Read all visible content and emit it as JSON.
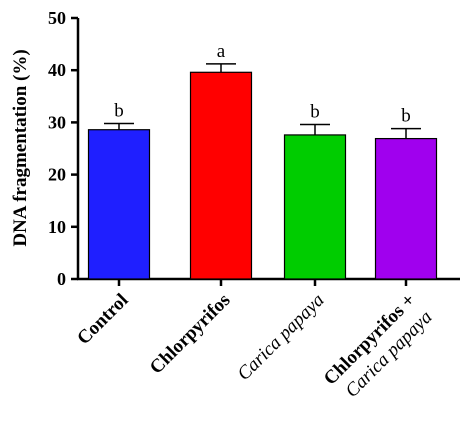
{
  "chart_data": {
    "type": "bar",
    "title": "",
    "ylabel": "DNA fragmentation (%)",
    "xlabel": "",
    "ylim": [
      0,
      50
    ],
    "yticks": [
      0,
      10,
      20,
      30,
      40,
      50
    ],
    "grid": false,
    "categories": [
      {
        "lines": [
          {
            "text": "Control",
            "style": "bold"
          }
        ]
      },
      {
        "lines": [
          {
            "text": "Chlorpyrifos",
            "style": "bold"
          }
        ]
      },
      {
        "lines": [
          {
            "text": "Carica papaya",
            "style": "italic"
          }
        ]
      },
      {
        "lines": [
          {
            "text": "Chlorpyrifos +",
            "style": "bold"
          },
          {
            "text": "Carica papaya",
            "style": "italic"
          }
        ]
      }
    ],
    "values": [
      28.6,
      39.6,
      27.6,
      26.9
    ],
    "errors": [
      1.2,
      1.6,
      2.0,
      1.9
    ],
    "colors": [
      "#1f1fff",
      "#ff0000",
      "#00cc00",
      "#a000ee"
    ],
    "significance": [
      "b",
      "a",
      "b",
      "b"
    ]
  }
}
